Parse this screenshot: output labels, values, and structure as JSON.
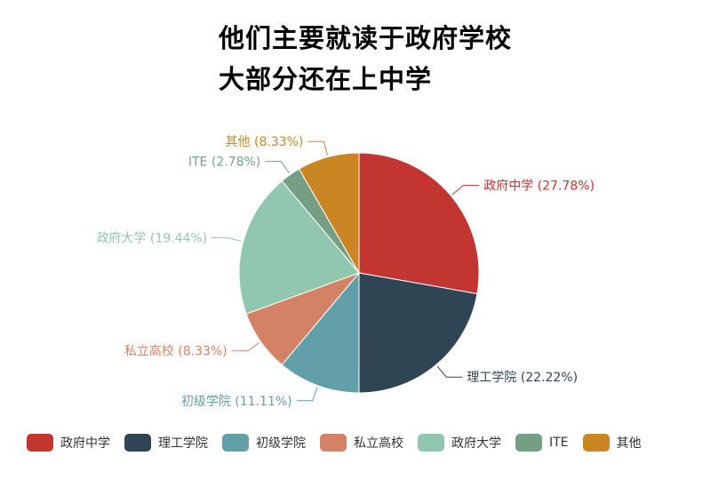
{
  "title_lines": [
    "他们主要就读于政府学校",
    "大部分还在上中学"
  ],
  "chart_data": {
    "type": "pie",
    "title": "他们主要就读于政府学校 大部分还在上中学",
    "categories": [
      "政府中学",
      "理工学院",
      "初级学院",
      "私立高校",
      "政府大学",
      "ITE",
      "其他"
    ],
    "values": [
      27.78,
      22.22,
      11.11,
      8.33,
      19.44,
      2.78,
      8.33
    ],
    "labels": [
      "政府中学 (27.78%)",
      "理工学院 (22.22%)",
      "初级学院 (11.11%)",
      "私立高校 (8.33%)",
      "政府大学 (19.44%)",
      "ITE (2.78%)",
      "其他 (8.33%)"
    ],
    "colors": [
      "#c23531",
      "#2f4554",
      "#61a0a8",
      "#d48265",
      "#91c7ae",
      "#749f83",
      "#ca8622"
    ],
    "legend_position": "bottom"
  }
}
